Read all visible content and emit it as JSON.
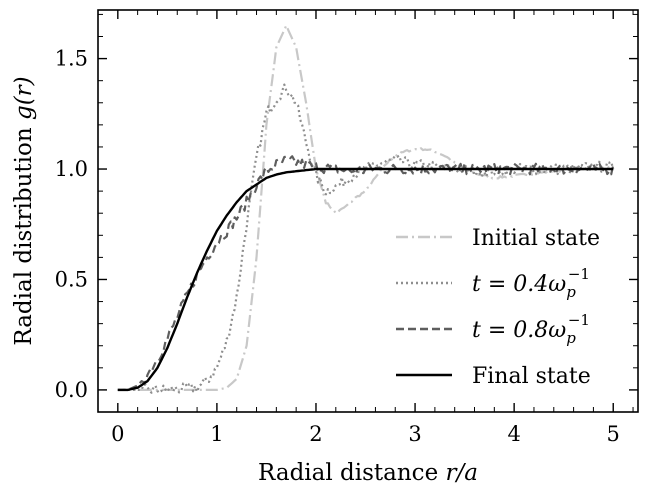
{
  "chart_data": {
    "type": "line",
    "title": "",
    "xlabel": "Radial distance r/a",
    "xlabel_parts": {
      "prefix": "Radial distance ",
      "math": "r/a"
    },
    "ylabel": "Radial distribution g(r)",
    "ylabel_parts": {
      "prefix": "Radial distribution ",
      "math": "g(r)"
    },
    "xlim": [
      -0.2,
      5.25
    ],
    "ylim": [
      -0.1,
      1.72
    ],
    "xticks": [
      0,
      1,
      2,
      3,
      4,
      5
    ],
    "xtick_labels": [
      "0",
      "1",
      "2",
      "3",
      "4",
      "5"
    ],
    "yticks": [
      0.0,
      0.5,
      1.0,
      1.5
    ],
    "ytick_labels": [
      "0.0",
      "0.5",
      "1.0",
      "1.5"
    ],
    "grid": false,
    "legend_position": "lower-right",
    "series": [
      {
        "name": "Initial state",
        "legend_label": "Initial state",
        "color": "#c8c8c8",
        "style": "dashdot",
        "x": [
          0.0,
          0.5,
          1.0,
          1.1,
          1.2,
          1.3,
          1.4,
          1.5,
          1.6,
          1.7,
          1.8,
          1.9,
          2.0,
          2.1,
          2.2,
          2.3,
          2.4,
          2.5,
          2.6,
          2.7,
          2.8,
          2.9,
          3.0,
          3.1,
          3.2,
          3.3,
          3.4,
          3.5,
          3.6,
          3.7,
          3.8,
          3.9,
          4.0,
          4.2,
          4.4,
          4.6,
          4.8,
          5.0
        ],
        "y": [
          0.0,
          0.0,
          0.0,
          0.01,
          0.05,
          0.2,
          0.6,
          1.2,
          1.55,
          1.65,
          1.55,
          1.3,
          1.0,
          0.85,
          0.8,
          0.83,
          0.87,
          0.9,
          0.96,
          1.02,
          1.06,
          1.08,
          1.09,
          1.09,
          1.08,
          1.06,
          1.03,
          1.0,
          0.98,
          0.97,
          0.96,
          0.965,
          0.97,
          0.98,
          0.99,
          1.0,
          1.005,
          1.01
        ]
      },
      {
        "name": "t = 0.4 ω_p^-1",
        "legend_label": {
          "prefix": "t = 0.4",
          "math": "ω",
          "sub": "p",
          "sup": "−1"
        },
        "color": "#8e8e8e",
        "style": "dotted",
        "x": [
          0.0,
          0.5,
          0.8,
          0.9,
          1.0,
          1.1,
          1.2,
          1.3,
          1.4,
          1.5,
          1.6,
          1.7,
          1.8,
          1.9,
          2.0,
          2.1,
          2.2,
          2.3,
          2.4,
          2.5,
          2.6,
          2.7,
          2.8,
          2.9,
          3.0,
          3.2,
          3.4,
          3.6,
          3.8,
          4.0,
          4.2,
          4.4,
          4.6,
          4.8,
          5.0
        ],
        "y": [
          0.0,
          0.0,
          0.01,
          0.04,
          0.1,
          0.22,
          0.42,
          0.75,
          1.05,
          1.25,
          1.32,
          1.37,
          1.3,
          1.12,
          0.97,
          0.9,
          0.92,
          0.95,
          0.98,
          1.0,
          1.02,
          1.03,
          1.04,
          1.03,
          1.02,
          1.01,
          1.0,
          0.99,
          0.99,
          1.0,
          1.0,
          1.0,
          1.0,
          1.01,
          1.01
        ]
      },
      {
        "name": "t = 0.8 ω_p^-1",
        "legend_label": {
          "prefix": "t = 0.8",
          "math": "ω",
          "sub": "p",
          "sup": "−1"
        },
        "color": "#5e5e5e",
        "style": "dashed",
        "x": [
          0.0,
          0.1,
          0.2,
          0.3,
          0.4,
          0.5,
          0.6,
          0.7,
          0.8,
          0.9,
          1.0,
          1.1,
          1.2,
          1.3,
          1.4,
          1.5,
          1.6,
          1.7,
          1.8,
          1.9,
          2.0,
          2.2,
          2.4,
          2.6,
          2.8,
          3.0,
          3.2,
          3.4,
          3.6,
          3.8,
          4.0,
          4.2,
          4.4,
          4.6,
          4.8,
          5.0
        ],
        "y": [
          0.0,
          0.0,
          0.02,
          0.07,
          0.14,
          0.23,
          0.33,
          0.43,
          0.52,
          0.6,
          0.67,
          0.72,
          0.78,
          0.85,
          0.93,
          0.99,
          1.02,
          1.04,
          1.03,
          1.02,
          1.01,
          1.0,
          0.99,
          1.0,
          1.0,
          1.0,
          1.0,
          1.0,
          1.0,
          1.0,
          1.0,
          1.0,
          1.0,
          1.0,
          1.0,
          1.0
        ]
      },
      {
        "name": "Final state",
        "legend_label": "Final state",
        "color": "#000000",
        "style": "solid",
        "x": [
          0.0,
          0.1,
          0.2,
          0.3,
          0.4,
          0.5,
          0.6,
          0.7,
          0.8,
          0.9,
          1.0,
          1.1,
          1.2,
          1.3,
          1.4,
          1.5,
          1.6,
          1.7,
          1.8,
          1.9,
          2.0,
          2.2,
          2.4,
          2.6,
          3.0,
          3.5,
          4.0,
          4.5,
          5.0
        ],
        "y": [
          0.0,
          0.0,
          0.01,
          0.04,
          0.1,
          0.19,
          0.3,
          0.42,
          0.53,
          0.63,
          0.72,
          0.79,
          0.85,
          0.9,
          0.93,
          0.96,
          0.975,
          0.985,
          0.99,
          0.995,
          1.0,
          1.0,
          1.0,
          1.0,
          1.0,
          1.0,
          1.0,
          1.0,
          1.0
        ]
      }
    ]
  }
}
